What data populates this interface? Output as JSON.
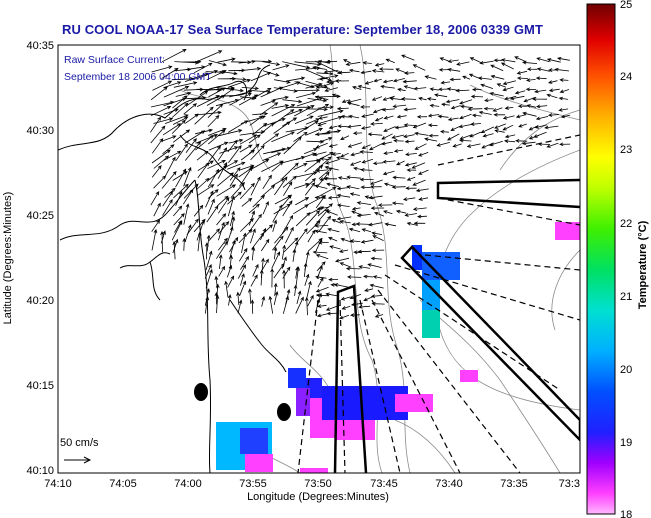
{
  "title": "RU COOL  NOAA-17  Sea Surface Temperature:  September 18, 2006 0339 GMT",
  "annotations": {
    "current_line1": "Raw Surface Current:",
    "current_line2": "September 18 2006 04:00 GMT",
    "scale_label": "50 cm/s"
  },
  "axes": {
    "xlabel": "Longitude (Degrees:Minutes)",
    "ylabel": "Latitude (Degrees:Minutes)",
    "x_ticks": [
      "74:10",
      "74:05",
      "74:00",
      "73:55",
      "73:50",
      "73:45",
      "73:40",
      "73:35",
      "73:3"
    ],
    "y_ticks": [
      "40:35",
      "40:30",
      "40:25",
      "40:20",
      "40:15",
      "40:10"
    ]
  },
  "colorbar": {
    "label": "Temperature (°C)",
    "ticks": [
      "25",
      "24",
      "23",
      "22",
      "21",
      "20",
      "19",
      "18"
    ],
    "min": 18,
    "max": 25
  },
  "colors": {
    "title": "#1a1aa6",
    "land": "#ffffff",
    "coast": "#000000",
    "contour": "#8a8a8a"
  }
}
